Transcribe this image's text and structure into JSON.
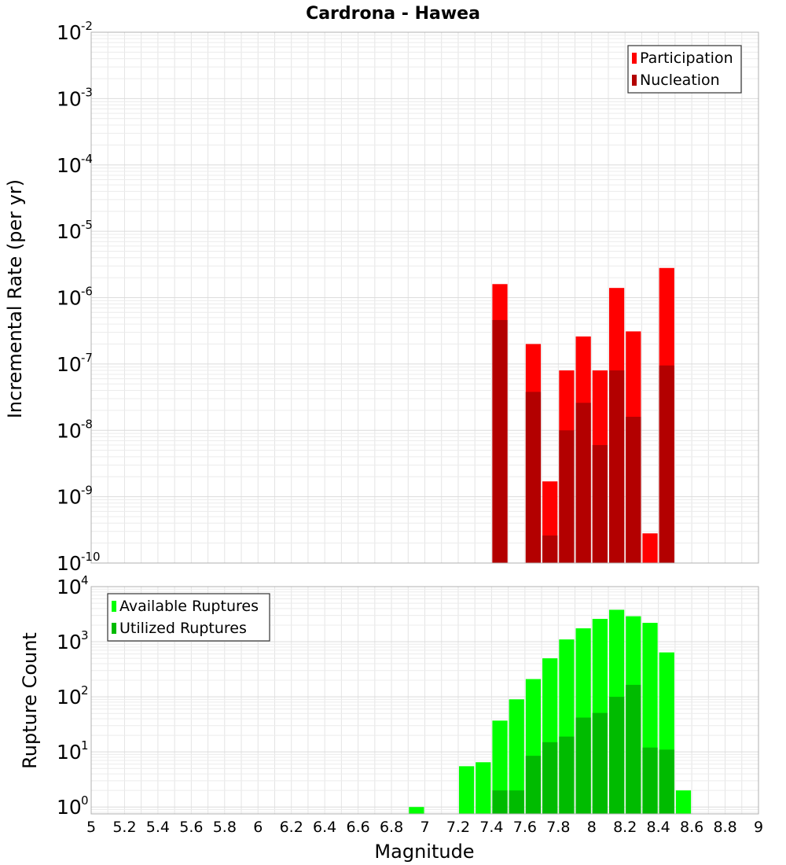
{
  "title": "Cardrona - Hawea",
  "xlabel": "Magnitude",
  "chart_data": [
    {
      "type": "bar",
      "panel": "top",
      "ylabel": "Incremental Rate (per yr)",
      "yscale": "log",
      "ylim": [
        1e-10,
        0.01
      ],
      "xlim": [
        5,
        9
      ],
      "grid": true,
      "legend_placement": "top-right",
      "bar_width": 0.1,
      "x": [
        7.45,
        7.65,
        7.75,
        7.85,
        7.95,
        8.05,
        8.15,
        8.25,
        8.35,
        8.45
      ],
      "series": [
        {
          "name": "Participation",
          "color": "#ff0000",
          "values": [
            1.6e-06,
            2e-07,
            1.7e-09,
            8e-08,
            2.6e-07,
            8e-08,
            1.4e-06,
            3.1e-07,
            2.8e-10,
            2.8e-06
          ]
        },
        {
          "name": "Nucleation",
          "color": "#b30000",
          "values": [
            4.6e-07,
            3.8e-08,
            2.6e-10,
            1e-08,
            2.6e-08,
            6e-09,
            8e-08,
            1.6e-08,
            null,
            9.5e-08
          ]
        }
      ]
    },
    {
      "type": "bar",
      "panel": "bottom",
      "ylabel": "Rupture Count",
      "yscale": "log",
      "ylim": [
        0.75,
        10000
      ],
      "xlim": [
        5,
        9
      ],
      "grid": true,
      "legend_placement": "top-left",
      "bar_width": 0.1,
      "x": [
        6.95,
        7.25,
        7.35,
        7.45,
        7.55,
        7.65,
        7.75,
        7.85,
        7.95,
        8.05,
        8.15,
        8.25,
        8.35,
        8.45,
        8.55
      ],
      "series": [
        {
          "name": "Available Ruptures",
          "color": "#00ff00",
          "values": [
            1,
            5.5,
            6.5,
            37,
            90,
            210,
            500,
            1100,
            1750,
            2600,
            3800,
            2900,
            2200,
            640,
            2
          ]
        },
        {
          "name": "Utilized Ruptures",
          "color": "#00bb00",
          "values": [
            null,
            null,
            null,
            2,
            2,
            8.5,
            15,
            19,
            42,
            51,
            100,
            165,
            12,
            11,
            null
          ]
        }
      ]
    }
  ],
  "xticks": [
    "5",
    "5.2",
    "5.4",
    "5.6",
    "5.8",
    "6",
    "6.2",
    "6.4",
    "6.6",
    "6.8",
    "7",
    "7.2",
    "7.4",
    "7.6",
    "7.8",
    "8",
    "8.2",
    "8.4",
    "8.6",
    "8.8",
    "9"
  ],
  "yticks_top": [
    {
      "base": "10",
      "exp": "-10",
      "v": 1e-10
    },
    {
      "base": "10",
      "exp": "-9",
      "v": 1e-09
    },
    {
      "base": "10",
      "exp": "-8",
      "v": 1e-08
    },
    {
      "base": "10",
      "exp": "-7",
      "v": 1e-07
    },
    {
      "base": "10",
      "exp": "-6",
      "v": 1e-06
    },
    {
      "base": "10",
      "exp": "-5",
      "v": 1e-05
    },
    {
      "base": "10",
      "exp": "-4",
      "v": 0.0001
    },
    {
      "base": "10",
      "exp": "-3",
      "v": 0.001
    },
    {
      "base": "10",
      "exp": "-2",
      "v": 0.01
    }
  ],
  "yticks_bottom": [
    {
      "base": "10",
      "exp": "0",
      "v": 1
    },
    {
      "base": "10",
      "exp": "1",
      "v": 10
    },
    {
      "base": "10",
      "exp": "2",
      "v": 100
    },
    {
      "base": "10",
      "exp": "3",
      "v": 1000
    },
    {
      "base": "10",
      "exp": "4",
      "v": 10000
    }
  ]
}
